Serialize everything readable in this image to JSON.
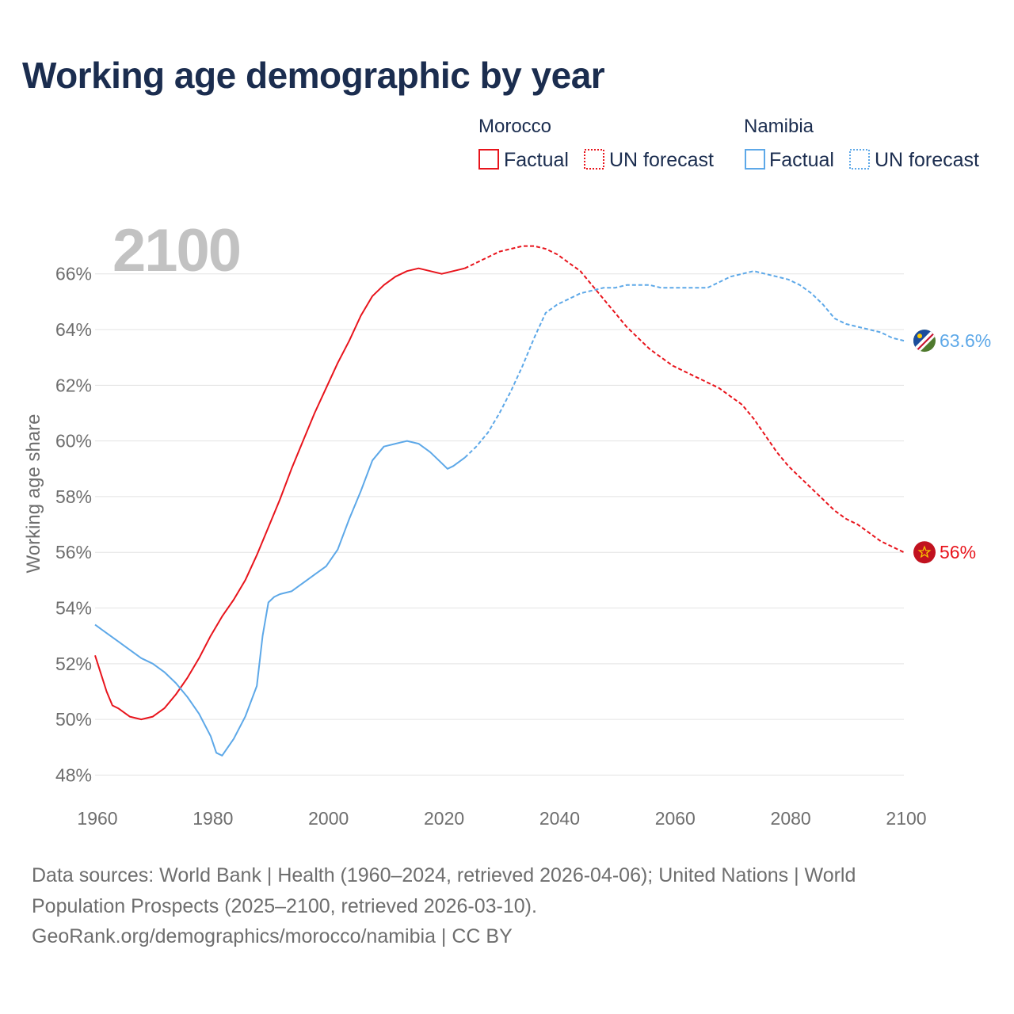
{
  "title": "Working age demographic by year",
  "year_label": "2100",
  "legend": {
    "groups": [
      {
        "name": "Morocco",
        "color": "#e8141c",
        "factual": "Factual",
        "forecast": "UN forecast"
      },
      {
        "name": "Namibia",
        "color": "#5da8e8",
        "factual": "Factual",
        "forecast": "UN forecast"
      }
    ]
  },
  "source": {
    "line1": "Data sources: World Bank | Health (1960–2024, retrieved 2026-04-06); United Nations | World",
    "line2": "Population Prospects (2025–2100, retrieved 2026-03-10).",
    "line3": "GeoRank.org/demographics/morocco/namibia | CC BY"
  },
  "chart_data": {
    "type": "line",
    "title": "Working age demographic by year",
    "xlabel": "",
    "ylabel": "Working age share",
    "xlim": [
      1960,
      2100
    ],
    "ylim": [
      47.5,
      67.5
    ],
    "xticks": [
      1960,
      1980,
      2000,
      2020,
      2040,
      2060,
      2080,
      2100
    ],
    "xtick_labels": [
      "1960",
      "1980",
      "2000",
      "2020",
      "2040",
      "2060",
      "2080",
      "2100"
    ],
    "yticks": [
      48,
      50,
      52,
      54,
      56,
      58,
      60,
      62,
      64,
      66
    ],
    "ytick_labels": [
      "48%",
      "50%",
      "52%",
      "54%",
      "56%",
      "58%",
      "60%",
      "62%",
      "64%",
      "66%"
    ],
    "grid": true,
    "series": [
      {
        "name": "Morocco",
        "color": "#e8141c",
        "end_label": "56%",
        "factual_range": "1960–2024",
        "factual": [
          [
            1960,
            52.3
          ],
          [
            1962,
            51.0
          ],
          [
            1963,
            50.5
          ],
          [
            1964,
            50.4
          ],
          [
            1966,
            50.1
          ],
          [
            1968,
            50.0
          ],
          [
            1970,
            50.1
          ],
          [
            1972,
            50.4
          ],
          [
            1974,
            50.9
          ],
          [
            1976,
            51.5
          ],
          [
            1978,
            52.2
          ],
          [
            1980,
            53.0
          ],
          [
            1982,
            53.7
          ],
          [
            1984,
            54.3
          ],
          [
            1986,
            55.0
          ],
          [
            1988,
            55.9
          ],
          [
            1990,
            56.9
          ],
          [
            1992,
            57.9
          ],
          [
            1994,
            59.0
          ],
          [
            1996,
            60.0
          ],
          [
            1998,
            61.0
          ],
          [
            2000,
            61.9
          ],
          [
            2002,
            62.8
          ],
          [
            2004,
            63.6
          ],
          [
            2006,
            64.5
          ],
          [
            2008,
            65.2
          ],
          [
            2010,
            65.6
          ],
          [
            2012,
            65.9
          ],
          [
            2014,
            66.1
          ],
          [
            2016,
            66.2
          ],
          [
            2018,
            66.1
          ],
          [
            2020,
            66.0
          ],
          [
            2022,
            66.1
          ],
          [
            2024,
            66.2
          ]
        ],
        "forecast": [
          [
            2024,
            66.2
          ],
          [
            2026,
            66.4
          ],
          [
            2028,
            66.6
          ],
          [
            2030,
            66.8
          ],
          [
            2032,
            66.9
          ],
          [
            2034,
            67.0
          ],
          [
            2036,
            67.0
          ],
          [
            2038,
            66.9
          ],
          [
            2040,
            66.7
          ],
          [
            2042,
            66.4
          ],
          [
            2044,
            66.1
          ],
          [
            2046,
            65.6
          ],
          [
            2048,
            65.1
          ],
          [
            2050,
            64.6
          ],
          [
            2052,
            64.1
          ],
          [
            2054,
            63.7
          ],
          [
            2056,
            63.3
          ],
          [
            2058,
            63.0
          ],
          [
            2060,
            62.7
          ],
          [
            2062,
            62.5
          ],
          [
            2064,
            62.3
          ],
          [
            2066,
            62.1
          ],
          [
            2068,
            61.9
          ],
          [
            2070,
            61.6
          ],
          [
            2072,
            61.3
          ],
          [
            2074,
            60.8
          ],
          [
            2076,
            60.2
          ],
          [
            2078,
            59.6
          ],
          [
            2080,
            59.1
          ],
          [
            2082,
            58.7
          ],
          [
            2084,
            58.3
          ],
          [
            2086,
            57.9
          ],
          [
            2088,
            57.5
          ],
          [
            2090,
            57.2
          ],
          [
            2092,
            57.0
          ],
          [
            2094,
            56.7
          ],
          [
            2096,
            56.4
          ],
          [
            2098,
            56.2
          ],
          [
            2100,
            56.0
          ]
        ]
      },
      {
        "name": "Namibia",
        "color": "#5da8e8",
        "end_label": "63.6%",
        "factual_range": "1960–2024",
        "factual": [
          [
            1960,
            53.4
          ],
          [
            1962,
            53.1
          ],
          [
            1964,
            52.8
          ],
          [
            1966,
            52.5
          ],
          [
            1968,
            52.2
          ],
          [
            1970,
            52.0
          ],
          [
            1972,
            51.7
          ],
          [
            1974,
            51.3
          ],
          [
            1976,
            50.8
          ],
          [
            1978,
            50.2
          ],
          [
            1980,
            49.4
          ],
          [
            1981,
            48.8
          ],
          [
            1982,
            48.7
          ],
          [
            1984,
            49.3
          ],
          [
            1986,
            50.1
          ],
          [
            1988,
            51.2
          ],
          [
            1989,
            53.0
          ],
          [
            1990,
            54.2
          ],
          [
            1991,
            54.4
          ],
          [
            1992,
            54.5
          ],
          [
            1994,
            54.6
          ],
          [
            1996,
            54.9
          ],
          [
            1998,
            55.2
          ],
          [
            2000,
            55.5
          ],
          [
            2002,
            56.1
          ],
          [
            2004,
            57.2
          ],
          [
            2006,
            58.2
          ],
          [
            2008,
            59.3
          ],
          [
            2010,
            59.8
          ],
          [
            2012,
            59.9
          ],
          [
            2014,
            60.0
          ],
          [
            2016,
            59.9
          ],
          [
            2018,
            59.6
          ],
          [
            2020,
            59.2
          ],
          [
            2021,
            59.0
          ],
          [
            2022,
            59.1
          ],
          [
            2024,
            59.4
          ]
        ],
        "forecast": [
          [
            2024,
            59.4
          ],
          [
            2026,
            59.8
          ],
          [
            2028,
            60.3
          ],
          [
            2030,
            61.0
          ],
          [
            2032,
            61.8
          ],
          [
            2034,
            62.7
          ],
          [
            2036,
            63.7
          ],
          [
            2038,
            64.6
          ],
          [
            2040,
            64.9
          ],
          [
            2042,
            65.1
          ],
          [
            2044,
            65.3
          ],
          [
            2046,
            65.4
          ],
          [
            2048,
            65.5
          ],
          [
            2050,
            65.5
          ],
          [
            2052,
            65.6
          ],
          [
            2054,
            65.6
          ],
          [
            2056,
            65.6
          ],
          [
            2058,
            65.5
          ],
          [
            2060,
            65.5
          ],
          [
            2062,
            65.5
          ],
          [
            2064,
            65.5
          ],
          [
            2066,
            65.5
          ],
          [
            2068,
            65.7
          ],
          [
            2070,
            65.9
          ],
          [
            2072,
            66.0
          ],
          [
            2074,
            66.1
          ],
          [
            2076,
            66.0
          ],
          [
            2078,
            65.9
          ],
          [
            2080,
            65.8
          ],
          [
            2082,
            65.6
          ],
          [
            2084,
            65.3
          ],
          [
            2086,
            64.9
          ],
          [
            2088,
            64.4
          ],
          [
            2090,
            64.2
          ],
          [
            2092,
            64.1
          ],
          [
            2094,
            64.0
          ],
          [
            2096,
            63.9
          ],
          [
            2098,
            63.7
          ],
          [
            2100,
            63.6
          ]
        ]
      }
    ]
  }
}
